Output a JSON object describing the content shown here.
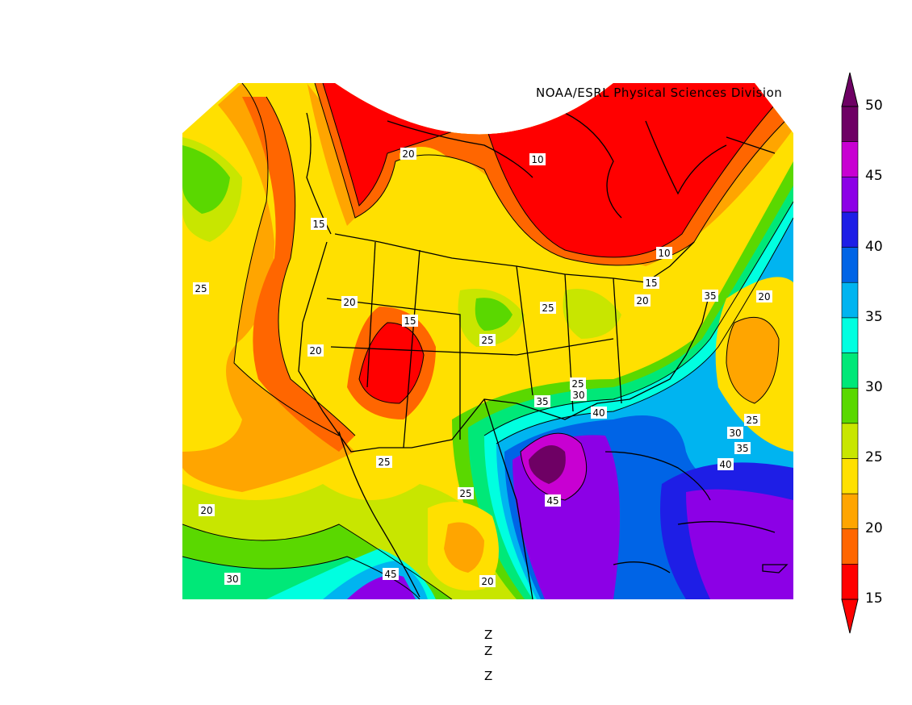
{
  "credit": "NOAA/ESRL Physical Sciences Division",
  "colorbar": {
    "ticks": [
      "50",
      "45",
      "40",
      "35",
      "30",
      "25",
      "20",
      "15"
    ],
    "colors": [
      "#ff0000",
      "#ff6600",
      "#ffa500",
      "#ffe000",
      "#c8e600",
      "#5ad800",
      "#00e878",
      "#00ffe0",
      "#00b4f0",
      "#0064e6",
      "#1e1ee6",
      "#8c00e6",
      "#c800d2",
      "#6e0064"
    ]
  },
  "contour_labels": [
    {
      "text": "20"
    },
    {
      "text": "10"
    },
    {
      "text": "15"
    },
    {
      "text": "10"
    },
    {
      "text": "15"
    },
    {
      "text": "20"
    },
    {
      "text": "35"
    },
    {
      "text": "20"
    },
    {
      "text": "25"
    },
    {
      "text": "20"
    },
    {
      "text": "25"
    },
    {
      "text": "15"
    },
    {
      "text": "25"
    },
    {
      "text": "20"
    },
    {
      "text": "25"
    },
    {
      "text": "30"
    },
    {
      "text": "35"
    },
    {
      "text": "40"
    },
    {
      "text": "25"
    },
    {
      "text": "30"
    },
    {
      "text": "35"
    },
    {
      "text": "40"
    },
    {
      "text": "25"
    },
    {
      "text": "25"
    },
    {
      "text": "45"
    },
    {
      "text": "20"
    },
    {
      "text": "20"
    },
    {
      "text": "30"
    },
    {
      "text": "45"
    }
  ],
  "bottom_labels": [
    "Z",
    "Z",
    "Z"
  ]
}
